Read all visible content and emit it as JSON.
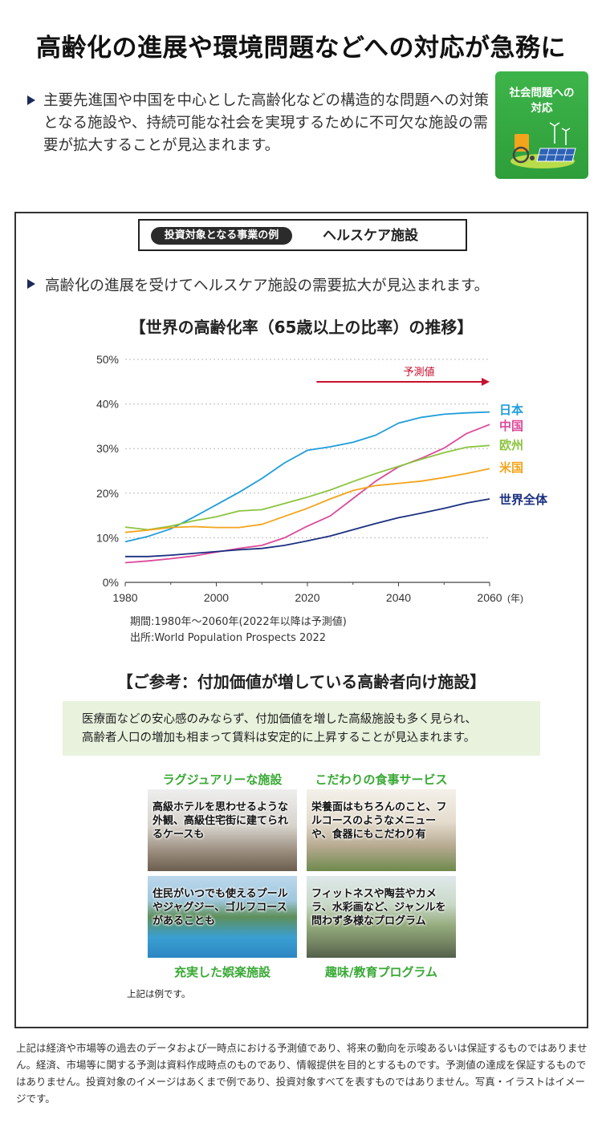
{
  "header": {
    "title": "高齢化の進展や環境問題などへの対応が急務に",
    "intro": "主要先進国や中国を中心とした高齢化などの構造的な問題への対策となる施設や、持続可能な社会を実現するために不可欠な施設の需要が拡大することが見込まれます。",
    "badge_line1": "社会問題への",
    "badge_line2": "対応"
  },
  "section": {
    "tag_label": "投資対象となる事業の例",
    "tag_title": "ヘルスケア施設",
    "lead": "高齢化の進展を受けてヘルスケア施設の需要拡大が見込まれます。"
  },
  "chart_data": {
    "type": "line",
    "title": "【世界の高齢化率（65歳以上の比率）の推移】",
    "x_unit": "(年)",
    "x_ticks": [
      "1980",
      "2000",
      "2020",
      "2040",
      "2060"
    ],
    "y_ticks": [
      "0%",
      "10%",
      "20%",
      "30%",
      "40%",
      "50%"
    ],
    "ylim": [
      0,
      50
    ],
    "xlim": [
      1980,
      2060
    ],
    "forecast_label": "予測値",
    "forecast_start": 2022,
    "x": [
      1980,
      1985,
      1990,
      1995,
      2000,
      2005,
      2010,
      2015,
      2020,
      2025,
      2030,
      2035,
      2040,
      2045,
      2050,
      2055,
      2060
    ],
    "series": [
      {
        "name": "日本",
        "color": "#1f9dd9",
        "values": [
          9.1,
          10.3,
          12.0,
          14.6,
          17.4,
          20.2,
          23.3,
          26.8,
          29.6,
          30.4,
          31.4,
          33.0,
          35.7,
          37.0,
          37.7,
          38.0,
          38.2
        ]
      },
      {
        "name": "中国",
        "color": "#dd4a9a",
        "values": [
          4.4,
          4.8,
          5.3,
          5.9,
          6.8,
          7.6,
          8.3,
          10.0,
          12.6,
          14.9,
          18.8,
          22.7,
          25.9,
          27.8,
          30.1,
          33.4,
          35.4
        ]
      },
      {
        "name": "欧州",
        "color": "#8cc43f",
        "values": [
          12.4,
          11.8,
          12.6,
          13.8,
          14.7,
          16.0,
          16.3,
          17.7,
          19.1,
          20.7,
          22.6,
          24.4,
          26.0,
          27.6,
          29.1,
          30.3,
          30.7
        ]
      },
      {
        "name": "米国",
        "color": "#f2a51c",
        "values": [
          11.2,
          11.7,
          12.3,
          12.5,
          12.3,
          12.3,
          13.0,
          14.8,
          16.6,
          18.7,
          20.6,
          21.7,
          22.2,
          22.7,
          23.5,
          24.4,
          25.5
        ]
      },
      {
        "name": "世界全体",
        "color": "#1a2f80",
        "values": [
          5.8,
          5.8,
          6.1,
          6.5,
          6.9,
          7.3,
          7.6,
          8.3,
          9.3,
          10.4,
          11.8,
          13.2,
          14.5,
          15.5,
          16.6,
          17.8,
          18.7
        ]
      }
    ]
  },
  "notes": {
    "period": "期間:1980年〜2060年(2022年以降は予測値)",
    "source": "出所:World Population Prospects 2022"
  },
  "reference": {
    "title": "【ご参考：付加価値が増している高齢者向け施設】",
    "body_line1": "医療面などの安心感のみならず、付加価値を増した高級施設も多く見られ、",
    "body_line2": "高齢者人口の増加も相まって賃料は安定的に上昇することが見込まれます。"
  },
  "features": {
    "luxury_label": "ラグジュアリーな施設",
    "luxury_caption": "高級ホテルを思わせるような外観、高級住宅街に建てられるケースも",
    "food_label": "こだわりの食事サービス",
    "food_caption": "栄養面はもちろんのこと、フルコースのようなメニューや、食器にもこだわり有",
    "recreation_label": "充実した娯楽施設",
    "recreation_caption": "住民がいつでも使えるプールやジャグジー、ゴルフコースがあることも",
    "hobby_label": "趣味/教育プログラム",
    "hobby_caption": "フィットネスや陶芸やカメラ、水彩画など、ジャンルを問わず多様なプログラム",
    "example_note": "上記は例です。"
  },
  "disclaimer": "上記は経済や市場等の過去のデータおよび一時点における予測値であり、将来の動向を示唆あるいは保証するものではありません。経済、市場等に関する予測は資料作成時点のものであり、情報提供を目的とするものです。予測値の達成を保証するものではありません。投資対象のイメージはあくまで例であり、投資対象すべてを表すものではありません。写真・イラストはイメージです。"
}
